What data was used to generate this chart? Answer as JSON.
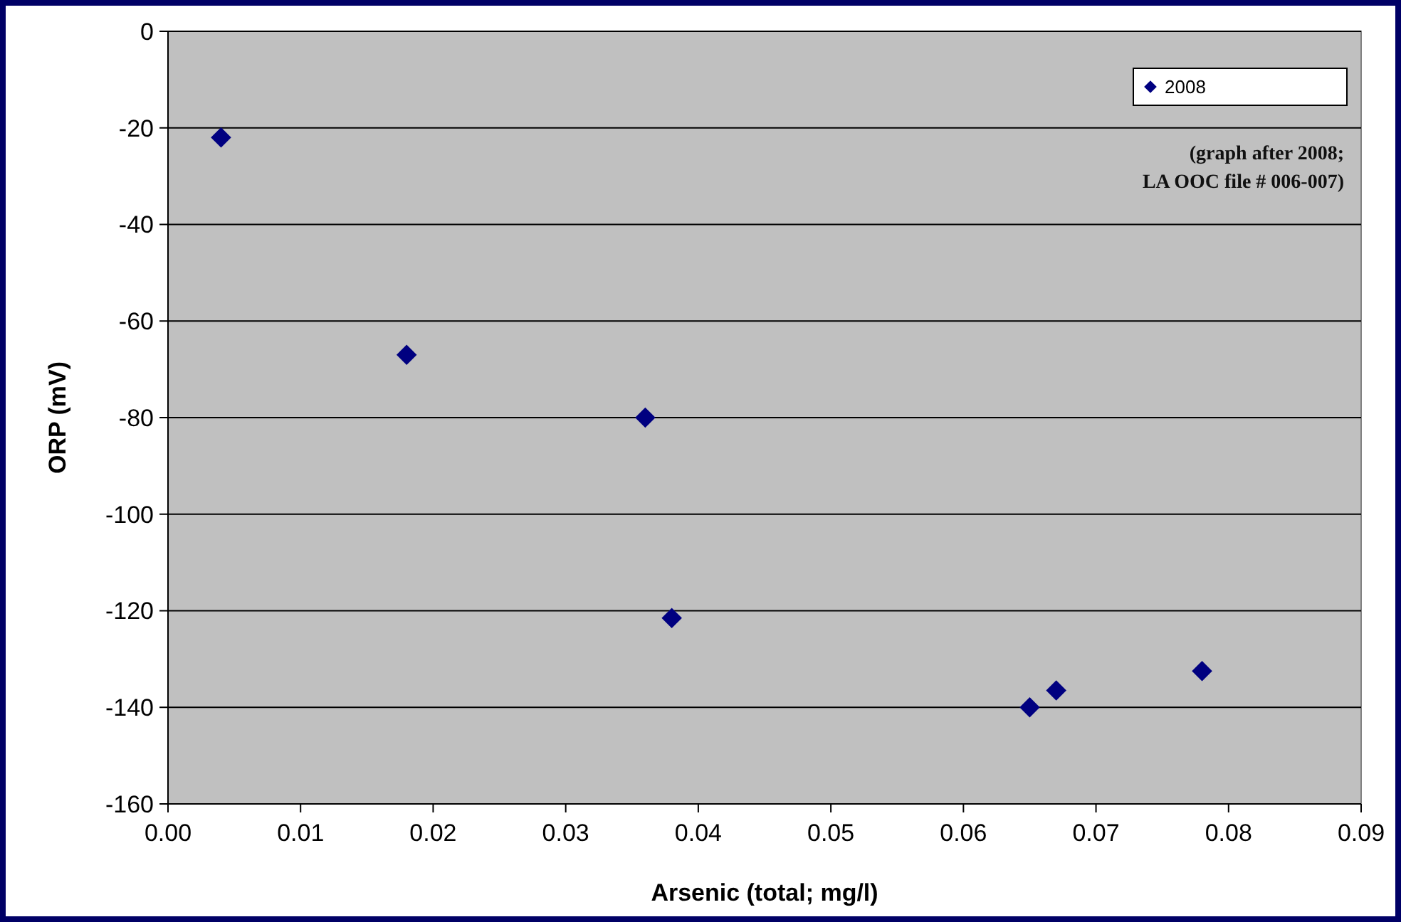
{
  "chart_data": {
    "type": "scatter",
    "xlabel": "Arsenic (total; mg/l)",
    "ylabel": "ORP (mV)",
    "x": [
      0.004,
      0.018,
      0.036,
      0.038,
      0.065,
      0.067,
      0.078
    ],
    "series": [
      {
        "name": "2008",
        "color": "#000080",
        "values": [
          -22,
          -67,
          -80,
          -121.5,
          -140,
          -136.5,
          -132.5
        ]
      }
    ],
    "xlim": [
      0,
      0.09
    ],
    "xticks": [
      {
        "value": 0,
        "label": "0.00"
      },
      {
        "value": 0.01,
        "label": "0.01"
      },
      {
        "value": 0.02,
        "label": "0.02"
      },
      {
        "value": 0.03,
        "label": "0.03"
      },
      {
        "value": 0.04,
        "label": "0.04"
      },
      {
        "value": 0.05,
        "label": "0.05"
      },
      {
        "value": 0.06,
        "label": "0.06"
      },
      {
        "value": 0.07,
        "label": "0.07"
      },
      {
        "value": 0.08,
        "label": "0.08"
      },
      {
        "value": 0.09,
        "label": "0.09"
      }
    ],
    "ylim": [
      -160,
      0
    ],
    "yticks": [
      -160,
      -140,
      -120,
      -100,
      -80,
      -60,
      -40,
      -20,
      0
    ],
    "grid": "y",
    "legend": "top right",
    "marker": "diamond",
    "annotations": [
      "(graph after 2008;\nLA OOC file # 006-007)"
    ]
  }
}
